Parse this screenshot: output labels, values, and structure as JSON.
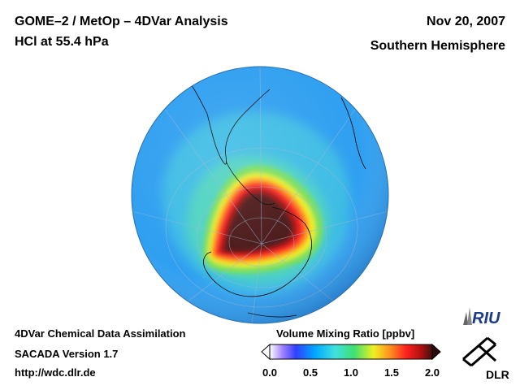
{
  "header": {
    "title_line1": "GOME–2 / MetOp – 4DVar Analysis",
    "title_line2": "HCl at 55.4 hPa",
    "date": "Nov 20, 2007",
    "hemisphere": "Southern Hemisphere"
  },
  "footer": {
    "line1": "4DVar Chemical Data Assimilation",
    "line2": "SACADA Version 1.7",
    "line3": "http://wdc.dlr.de"
  },
  "colorbar": {
    "title": "Volume Mixing Ratio [ppbv]",
    "ticks": [
      "0.0",
      "0.5",
      "1.0",
      "1.5",
      "2.0"
    ],
    "min": 0.0,
    "max": 2.0,
    "colors": [
      "#ffffff",
      "#a080ff",
      "#3040ff",
      "#00a8ff",
      "#40e0e0",
      "#40e070",
      "#f0f020",
      "#ff9020",
      "#ff2020",
      "#b01010",
      "#401010"
    ]
  },
  "map": {
    "projection": "orthographic",
    "center": "South Pole",
    "background_color": "#2f9ff0",
    "field_colors": {
      "outer": "#3aa8f5",
      "band": "#40d8c8",
      "mid": "#7ae06a",
      "yellow": "#f0f020",
      "orange": "#ff7a20",
      "red": "#ff2020",
      "dark": "#a01818",
      "core": "#4a1515"
    }
  },
  "logos": {
    "riu": "RIU",
    "dlr": "DLR"
  }
}
